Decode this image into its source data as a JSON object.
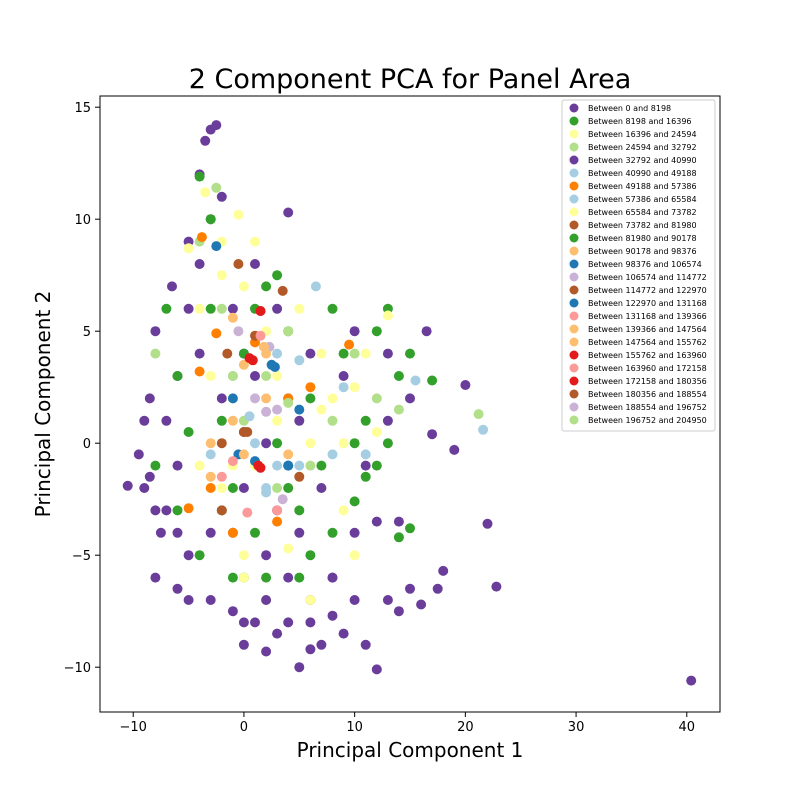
{
  "chart_data": {
    "type": "scatter",
    "title": "2 Component PCA for Panel Area",
    "xlabel": "Principal Component 1",
    "ylabel": "Principal Component 2",
    "xlim": [
      -13,
      43
    ],
    "ylim": [
      -12,
      15.5
    ],
    "xticks": [
      -10,
      0,
      10,
      20,
      30,
      40
    ],
    "yticks": [
      -10,
      -5,
      0,
      5,
      10,
      15
    ],
    "grid": false,
    "legend_position": "top-right",
    "series": [
      {
        "name": "Between 0 and 8198",
        "color": "#6a3d9a",
        "points": [
          [
            -10.5,
            -1.9
          ],
          [
            -9.5,
            -0.5
          ],
          [
            -9,
            -2
          ],
          [
            -8.5,
            2
          ],
          [
            -8,
            5
          ],
          [
            -7.5,
            -4
          ],
          [
            -6.5,
            7
          ],
          [
            -6,
            -6.5
          ],
          [
            -5,
            9
          ],
          [
            -4,
            12
          ],
          [
            -3.5,
            13.5
          ],
          [
            -3,
            14
          ],
          [
            -2.5,
            14.2
          ],
          [
            -1,
            -7.5
          ],
          [
            0,
            -9
          ],
          [
            1,
            -8
          ],
          [
            2,
            -9.3
          ],
          [
            3,
            -8.5
          ],
          [
            4,
            10.3
          ],
          [
            5,
            -10
          ],
          [
            6,
            -9.2
          ],
          [
            7,
            -9
          ],
          [
            9,
            -8.5
          ],
          [
            11,
            -9
          ],
          [
            12,
            -10.1
          ],
          [
            13,
            -7
          ],
          [
            14,
            -7.5
          ],
          [
            15,
            -6.5
          ],
          [
            16,
            -7.2
          ],
          [
            17.5,
            -6.5
          ],
          [
            18,
            -5.7
          ],
          [
            20,
            2.6
          ],
          [
            22,
            -3.6
          ],
          [
            22.8,
            -6.4
          ],
          [
            40.4,
            -10.6
          ],
          [
            19,
            -0.3
          ],
          [
            17,
            0.4
          ],
          [
            16.5,
            5
          ],
          [
            13,
            1
          ],
          [
            12,
            -3.5
          ],
          [
            8,
            -6
          ],
          [
            6,
            4
          ],
          [
            4,
            2
          ],
          [
            2,
            0
          ],
          [
            0,
            -2
          ],
          [
            -2,
            2
          ],
          [
            -4,
            4
          ],
          [
            -6,
            -1
          ],
          [
            -8,
            -3
          ],
          [
            -5,
            -5
          ],
          [
            -3,
            -7
          ],
          [
            -1,
            6
          ],
          [
            1,
            8
          ],
          [
            3,
            6
          ],
          [
            5,
            -4
          ],
          [
            7,
            -2
          ],
          [
            9,
            3
          ],
          [
            11,
            -1
          ],
          [
            10,
            5
          ],
          [
            -3,
            10
          ],
          [
            -2,
            11
          ],
          [
            -4,
            8
          ],
          [
            0,
            4
          ],
          [
            2,
            -5
          ],
          [
            4,
            -6
          ],
          [
            -7,
            1
          ],
          [
            -9,
            1
          ],
          [
            -8.5,
            -1.5
          ],
          [
            -6,
            3
          ],
          [
            -5,
            6
          ],
          [
            6,
            -7
          ],
          [
            8,
            -7.7
          ],
          [
            10,
            -4
          ],
          [
            14,
            -3.5
          ],
          [
            15,
            2
          ],
          [
            13,
            4
          ],
          [
            3,
            -3
          ],
          [
            -1,
            -4
          ],
          [
            1,
            3
          ],
          [
            5,
            1
          ]
        ]
      },
      {
        "name": "Between 8198 and 16396",
        "color": "#33a02c",
        "points": [
          [
            -6,
            3
          ],
          [
            -5,
            0.5
          ],
          [
            -4,
            -5
          ],
          [
            -3,
            6
          ],
          [
            -2,
            1
          ],
          [
            -1,
            -2
          ],
          [
            0,
            4
          ],
          [
            1,
            -4
          ],
          [
            2,
            7
          ],
          [
            3,
            0
          ],
          [
            4,
            5
          ],
          [
            5,
            -3
          ],
          [
            6,
            2
          ],
          [
            7,
            -1
          ],
          [
            8,
            6
          ],
          [
            9,
            4
          ],
          [
            10,
            -2.6
          ],
          [
            11,
            1
          ],
          [
            12,
            5
          ],
          [
            13,
            6
          ],
          [
            14,
            3
          ],
          [
            15,
            4
          ],
          [
            15,
            -3.8
          ],
          [
            17,
            2.8
          ],
          [
            3,
            7.5
          ],
          [
            1,
            6
          ],
          [
            -3,
            10
          ],
          [
            -4,
            11.9
          ],
          [
            6,
            -5
          ],
          [
            2,
            -6
          ],
          [
            0,
            -6
          ],
          [
            -2,
            -3
          ],
          [
            4,
            -2
          ],
          [
            8,
            -4
          ],
          [
            10,
            0
          ],
          [
            12,
            -1
          ]
        ]
      },
      {
        "name": "Between 16396 and 24594",
        "color": "#ffff99",
        "points": [
          [
            -5,
            8.7
          ],
          [
            -4,
            6
          ],
          [
            -3,
            3
          ],
          [
            -2,
            9
          ],
          [
            -1,
            2
          ],
          [
            0,
            7
          ],
          [
            1,
            -1
          ],
          [
            2,
            5
          ],
          [
            3,
            3
          ],
          [
            4,
            -1
          ],
          [
            5,
            6
          ],
          [
            6,
            0
          ],
          [
            7,
            4
          ],
          [
            8,
            2
          ],
          [
            9,
            -3
          ],
          [
            10,
            2.5
          ],
          [
            11,
            4
          ],
          [
            12,
            0.5
          ],
          [
            13,
            5.7
          ],
          [
            -3.5,
            11.2
          ],
          [
            -0.5,
            10.2
          ],
          [
            2,
            -7
          ],
          [
            4,
            -4.7
          ],
          [
            -2,
            -2
          ],
          [
            0,
            -6
          ],
          [
            6,
            -7
          ],
          [
            -4,
            -1
          ],
          [
            10,
            -5
          ]
        ]
      },
      {
        "name": "Between 24594 and 32792",
        "color": "#b2df8a",
        "points": [
          [
            -2.5,
            11.4
          ],
          [
            -8,
            4
          ],
          [
            -4,
            9
          ],
          [
            -2,
            6
          ],
          [
            0,
            1
          ],
          [
            2,
            3
          ],
          [
            4,
            5
          ],
          [
            6,
            -1
          ],
          [
            8,
            1
          ],
          [
            10,
            4
          ],
          [
            12,
            2
          ],
          [
            14,
            1.5
          ],
          [
            21.2,
            1.3
          ],
          [
            -1,
            -4
          ],
          [
            3,
            -2
          ]
        ]
      },
      {
        "name": "Between 32792 and 40990",
        "color": "#6a3d9a",
        "points": [
          [
            -7,
            -3
          ],
          [
            -5,
            -7
          ],
          [
            -3,
            -4
          ],
          [
            0,
            -8
          ],
          [
            2,
            -7
          ],
          [
            4,
            -8
          ],
          [
            6,
            -8
          ],
          [
            8,
            -6
          ],
          [
            10,
            -7
          ],
          [
            -8,
            -6
          ],
          [
            -6,
            -4
          ]
        ]
      },
      {
        "name": "Between 40990 and 49188",
        "color": "#a6cee3",
        "points": [
          [
            0.5,
            1.2
          ],
          [
            1,
            0
          ],
          [
            3,
            -1
          ],
          [
            5,
            3.7
          ],
          [
            6.5,
            7
          ],
          [
            9,
            2.5
          ],
          [
            11,
            -0.5
          ],
          [
            15.5,
            2.8
          ],
          [
            21.6,
            0.6
          ],
          [
            2,
            -2
          ]
        ]
      },
      {
        "name": "Between 49188 and 57386",
        "color": "#ff7f00",
        "points": [
          [
            -3.8,
            9.2
          ],
          [
            -2.5,
            4.9
          ],
          [
            -4,
            3.2
          ],
          [
            -3,
            -2
          ],
          [
            -5,
            -2.9
          ],
          [
            -1,
            -4
          ],
          [
            3,
            -3.5
          ],
          [
            4,
            2
          ],
          [
            6,
            2.5
          ],
          [
            9.5,
            4.4
          ],
          [
            1,
            4.5
          ]
        ]
      },
      {
        "name": "Between 57386 and 65584",
        "color": "#a6cee3",
        "points": [
          [
            -3,
            -0.5
          ],
          [
            0,
            0.5
          ],
          [
            2,
            -2.2
          ],
          [
            5,
            -1
          ],
          [
            8,
            -0.5
          ],
          [
            -1,
            3
          ],
          [
            3,
            4
          ]
        ]
      },
      {
        "name": "Between 65584 and 73782",
        "color": "#ffff99",
        "points": [
          [
            -2,
            7.5
          ],
          [
            1,
            9
          ],
          [
            3,
            1
          ],
          [
            5,
            -1.5
          ],
          [
            7,
            1.5
          ],
          [
            9,
            0
          ],
          [
            -1,
            -1
          ],
          [
            0,
            -5
          ]
        ]
      },
      {
        "name": "Between 73782 and 81980",
        "color": "#b15928",
        "points": [
          [
            -0.5,
            8
          ],
          [
            3.5,
            6.8
          ],
          [
            1,
            4.8
          ],
          [
            0,
            0.5
          ],
          [
            -2,
            0
          ],
          [
            5,
            -1.5
          ]
        ]
      },
      {
        "name": "Between 81980 and 90178",
        "color": "#33a02c",
        "points": [
          [
            -8,
            -1
          ],
          [
            -6,
            -3
          ],
          [
            -7,
            6
          ],
          [
            -1,
            -6
          ],
          [
            5,
            -6
          ],
          [
            11,
            -1.5
          ],
          [
            13,
            0
          ],
          [
            14,
            -4.2
          ]
        ]
      },
      {
        "name": "Between 90178 and 98376",
        "color": "#fdbf6f",
        "points": [
          [
            -1,
            1
          ],
          [
            2,
            2
          ],
          [
            4,
            -0.5
          ],
          [
            0,
            3.5
          ],
          [
            -3,
            0
          ]
        ]
      },
      {
        "name": "Between 98376 and 106574",
        "color": "#1f78b4",
        "points": [
          [
            -2.5,
            8.8
          ],
          [
            2.8,
            3.4
          ],
          [
            4,
            -1
          ],
          [
            1,
            -0.8
          ],
          [
            -1,
            2
          ],
          [
            5,
            1.5
          ]
        ]
      },
      {
        "name": "Between 106574 and 114772",
        "color": "#cab2d6",
        "points": [
          [
            2.3,
            4.3
          ],
          [
            1,
            2
          ],
          [
            3,
            1.5
          ],
          [
            -0.5,
            5
          ]
        ]
      },
      {
        "name": "Between 114772 and 122970",
        "color": "#b15928",
        "points": [
          [
            1.5,
            5.9
          ],
          [
            0,
            0.5
          ],
          [
            -2,
            -3
          ]
        ]
      },
      {
        "name": "Between 122970 and 131168",
        "color": "#1f78b4",
        "points": [
          [
            4,
            -1
          ],
          [
            2.5,
            3.5
          ],
          [
            -0.5,
            -0.5
          ]
        ]
      },
      {
        "name": "Between 131168 and 139366",
        "color": "#fb9a99",
        "points": [
          [
            0.3,
            -3.1
          ],
          [
            3,
            -3
          ],
          [
            -2,
            -1.5
          ]
        ]
      },
      {
        "name": "Between 139366 and 147564",
        "color": "#fdbf6f",
        "points": [
          [
            -3,
            -1.5
          ],
          [
            0,
            -0.5
          ],
          [
            2,
            4
          ]
        ]
      },
      {
        "name": "Between 147564 and 155762",
        "color": "#fdbf6f",
        "points": [
          [
            1.8,
            4.3
          ],
          [
            -1,
            5.6
          ]
        ]
      },
      {
        "name": "Between 155762 and 163960",
        "color": "#e31a1c",
        "points": [
          [
            1.5,
            5.9
          ],
          [
            1.5,
            -1.1
          ],
          [
            0.8,
            3.7
          ]
        ]
      },
      {
        "name": "Between 163960 and 172158",
        "color": "#fb9a99",
        "points": [
          [
            1.5,
            4.8
          ],
          [
            -1,
            -0.8
          ]
        ]
      },
      {
        "name": "Between 172158 and 180356",
        "color": "#e31a1c",
        "points": [
          [
            1.3,
            -1
          ],
          [
            0.5,
            3.8
          ]
        ]
      },
      {
        "name": "Between 180356 and 188554",
        "color": "#b15928",
        "points": [
          [
            0.3,
            0.5
          ],
          [
            -1.5,
            4
          ]
        ]
      },
      {
        "name": "Between 188554 and 196752",
        "color": "#cab2d6",
        "points": [
          [
            2,
            1.4
          ],
          [
            3.5,
            -2.5
          ]
        ]
      },
      {
        "name": "Between 196752 and 204950",
        "color": "#b2df8a",
        "points": [
          [
            -1,
            3
          ],
          [
            4,
            1.8
          ]
        ]
      }
    ]
  }
}
